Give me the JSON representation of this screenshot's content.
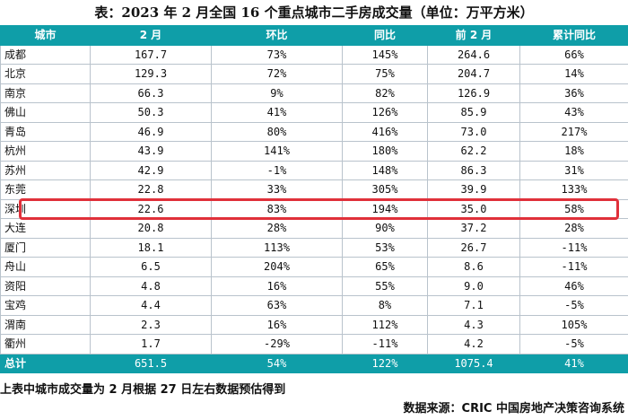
{
  "title": "表：2023 年 2 月全国 16 个重点城市二手房成交量（单位：万平方米）",
  "columns": [
    "城市",
    "2 月",
    "环比",
    "同比",
    "前 2 月",
    "累计同比"
  ],
  "rows": [
    [
      "成都",
      "167.7",
      "73%",
      "145%",
      "264.6",
      "66%"
    ],
    [
      "北京",
      "129.3",
      "72%",
      "75%",
      "204.7",
      "14%"
    ],
    [
      "南京",
      "66.3",
      "9%",
      "82%",
      "126.9",
      "36%"
    ],
    [
      "佛山",
      "50.3",
      "41%",
      "126%",
      "85.9",
      "43%"
    ],
    [
      "青岛",
      "46.9",
      "80%",
      "416%",
      "73.0",
      "217%"
    ],
    [
      "杭州",
      "43.9",
      "141%",
      "180%",
      "62.2",
      "18%"
    ],
    [
      "苏州",
      "42.9",
      "-1%",
      "148%",
      "86.3",
      "31%"
    ],
    [
      "东莞",
      "22.8",
      "33%",
      "305%",
      "39.9",
      "133%"
    ],
    [
      "深圳",
      "22.6",
      "83%",
      "194%",
      "35.0",
      "58%"
    ],
    [
      "大连",
      "20.8",
      "28%",
      "90%",
      "37.2",
      "28%"
    ],
    [
      "厦门",
      "18.1",
      "113%",
      "53%",
      "26.7",
      "-11%"
    ],
    [
      "舟山",
      "6.5",
      "204%",
      "65%",
      "8.6",
      "-11%"
    ],
    [
      "资阳",
      "4.8",
      "16%",
      "55%",
      "9.0",
      "46%"
    ],
    [
      "宝鸡",
      "4.4",
      "63%",
      "8%",
      "7.1",
      "-5%"
    ],
    [
      "渭南",
      "2.3",
      "16%",
      "112%",
      "4.3",
      "105%"
    ],
    [
      "衢州",
      "1.7",
      "-29%",
      "-11%",
      "4.2",
      "-5%"
    ]
  ],
  "total": [
    "总计",
    "651.5",
    "54%",
    "122%",
    "1075.4",
    "41%"
  ],
  "highlighted_city": "深圳",
  "note": "上表中城市成交量为 2 月根据 27 日左右数据预估得到",
  "source": "数据来源：CRIC 中国房地产决策咨询系统",
  "colors": {
    "header": "#0f9ea8",
    "highlight": "#e0303a"
  }
}
